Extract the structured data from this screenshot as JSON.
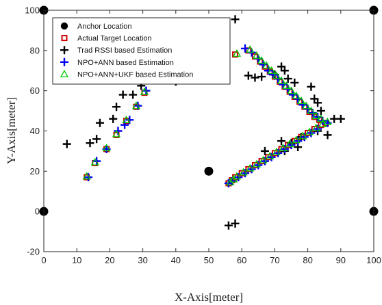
{
  "chart_data": {
    "type": "scatter",
    "title": "",
    "xlabel": "X-Axis[meter]",
    "ylabel": "Y-Axis[meter]",
    "xlim": [
      0,
      100
    ],
    "ylim": [
      -20,
      100
    ],
    "xticks": [
      0,
      10,
      20,
      30,
      40,
      50,
      60,
      70,
      80,
      90,
      100
    ],
    "yticks": [
      -20,
      0,
      20,
      40,
      60,
      80,
      100
    ],
    "grid": false,
    "legend_position": "top-left",
    "series": [
      {
        "name": "Anchor Location",
        "marker": "filled-circle",
        "color": "#000000",
        "points": [
          [
            0,
            100
          ],
          [
            100,
            100
          ],
          [
            50,
            20
          ],
          [
            0,
            0
          ],
          [
            100,
            0
          ]
        ]
      },
      {
        "name": "Actual Target Location",
        "marker": "square",
        "color": "#cc0000",
        "points": [
          [
            13,
            17
          ],
          [
            15.5,
            24
          ],
          [
            19,
            31
          ],
          [
            22,
            38
          ],
          [
            25,
            45
          ],
          [
            28,
            52
          ],
          [
            30.5,
            59
          ],
          [
            34,
            66
          ],
          [
            58,
            78
          ],
          [
            62,
            80
          ],
          [
            64,
            77
          ],
          [
            65.5,
            74.5
          ],
          [
            67,
            72
          ],
          [
            68.5,
            69.5
          ],
          [
            70,
            67
          ],
          [
            71.5,
            64.5
          ],
          [
            73,
            62
          ],
          [
            74.5,
            59.5
          ],
          [
            76,
            57
          ],
          [
            77.5,
            54.5
          ],
          [
            79,
            52
          ],
          [
            80.5,
            49.5
          ],
          [
            82,
            47
          ],
          [
            83.5,
            45.5
          ],
          [
            85.5,
            44
          ],
          [
            84,
            43
          ],
          [
            82,
            41
          ],
          [
            80,
            39
          ],
          [
            78,
            37
          ],
          [
            76,
            35
          ],
          [
            74,
            33
          ],
          [
            72,
            31
          ],
          [
            70,
            29
          ],
          [
            68,
            27
          ],
          [
            66,
            25
          ],
          [
            64,
            23
          ],
          [
            62,
            21
          ],
          [
            60,
            19
          ],
          [
            58,
            17
          ],
          [
            57,
            15.5
          ],
          [
            56,
            14
          ]
        ]
      },
      {
        "name": "Trad RSSI based Estimation",
        "marker": "plus",
        "color": "#000000",
        "points": [
          [
            7,
            33.5
          ],
          [
            14,
            34
          ],
          [
            16,
            36
          ],
          [
            17,
            44
          ],
          [
            21,
            46
          ],
          [
            22,
            52
          ],
          [
            24,
            58
          ],
          [
            27,
            58
          ],
          [
            29.5,
            62.5
          ],
          [
            40,
            64.5
          ],
          [
            58,
            95.5
          ],
          [
            62,
            67.5
          ],
          [
            64,
            66.5
          ],
          [
            66,
            67
          ],
          [
            70,
            68
          ],
          [
            72,
            72
          ],
          [
            73,
            70
          ],
          [
            74,
            66
          ],
          [
            76,
            64
          ],
          [
            81,
            62
          ],
          [
            82,
            56
          ],
          [
            83,
            54
          ],
          [
            84,
            50
          ],
          [
            88,
            46
          ],
          [
            90,
            46
          ],
          [
            86,
            38
          ],
          [
            83,
            40
          ],
          [
            78,
            37
          ],
          [
            77,
            32
          ],
          [
            72,
            35
          ],
          [
            75,
            34
          ],
          [
            73,
            30
          ],
          [
            67,
            30
          ],
          [
            56,
            -7
          ],
          [
            58,
            -6
          ]
        ]
      },
      {
        "name": "NPO+ANN based Estimation",
        "marker": "plus",
        "color": "#0000ee",
        "points": [
          [
            13.5,
            17
          ],
          [
            16,
            25
          ],
          [
            19,
            31
          ],
          [
            22.5,
            40
          ],
          [
            24.5,
            43
          ],
          [
            26,
            45.5
          ],
          [
            28.5,
            52.5
          ],
          [
            31,
            60
          ],
          [
            33.5,
            66
          ],
          [
            61,
            81
          ],
          [
            63,
            79
          ],
          [
            65,
            76
          ],
          [
            66.5,
            73
          ],
          [
            68,
            70
          ],
          [
            69.5,
            68
          ],
          [
            71,
            66
          ],
          [
            72.5,
            63
          ],
          [
            74,
            61
          ],
          [
            75.5,
            58
          ],
          [
            77,
            56
          ],
          [
            78.5,
            53
          ],
          [
            80,
            51
          ],
          [
            81.5,
            49
          ],
          [
            83,
            47
          ],
          [
            84.5,
            45
          ],
          [
            86,
            44
          ],
          [
            83,
            41
          ],
          [
            81,
            39
          ],
          [
            79,
            37
          ],
          [
            77,
            35
          ],
          [
            75,
            33
          ],
          [
            73,
            31
          ],
          [
            71,
            29
          ],
          [
            69,
            27
          ],
          [
            67,
            25
          ],
          [
            65,
            23
          ],
          [
            63,
            21
          ],
          [
            61,
            19
          ],
          [
            59,
            17
          ],
          [
            57,
            15
          ],
          [
            56,
            14
          ]
        ]
      },
      {
        "name": "NPO+ANN+UKF based Estimation",
        "marker": "triangle",
        "color": "#00cc00",
        "points": [
          [
            13,
            17.5
          ],
          [
            15.5,
            24.5
          ],
          [
            19,
            31.5
          ],
          [
            22,
            38.5
          ],
          [
            25,
            45.5
          ],
          [
            28,
            52.5
          ],
          [
            30.5,
            59.5
          ],
          [
            34,
            66.5
          ],
          [
            58.5,
            78.5
          ],
          [
            62.5,
            80.5
          ],
          [
            64.5,
            77.5
          ],
          [
            66,
            75
          ],
          [
            67.5,
            72.5
          ],
          [
            69,
            70
          ],
          [
            70.5,
            67.5
          ],
          [
            72,
            65
          ],
          [
            73.5,
            62.5
          ],
          [
            75,
            60
          ],
          [
            76.5,
            57.5
          ],
          [
            78,
            55
          ],
          [
            79.5,
            52.5
          ],
          [
            81,
            50
          ],
          [
            82.5,
            47.5
          ],
          [
            84,
            46
          ],
          [
            86,
            44.5
          ],
          [
            84.5,
            43.5
          ],
          [
            82.5,
            41.5
          ],
          [
            80.5,
            39.5
          ],
          [
            78.5,
            37.5
          ],
          [
            76.5,
            35.5
          ],
          [
            74.5,
            33.5
          ],
          [
            72.5,
            31.5
          ],
          [
            70.5,
            29.5
          ],
          [
            68.5,
            27.5
          ],
          [
            66.5,
            25.5
          ],
          [
            64.5,
            23.5
          ],
          [
            62.5,
            21.5
          ],
          [
            60.5,
            19.5
          ],
          [
            58.5,
            17.5
          ],
          [
            57.5,
            16
          ],
          [
            56.5,
            14.5
          ]
        ]
      }
    ]
  }
}
